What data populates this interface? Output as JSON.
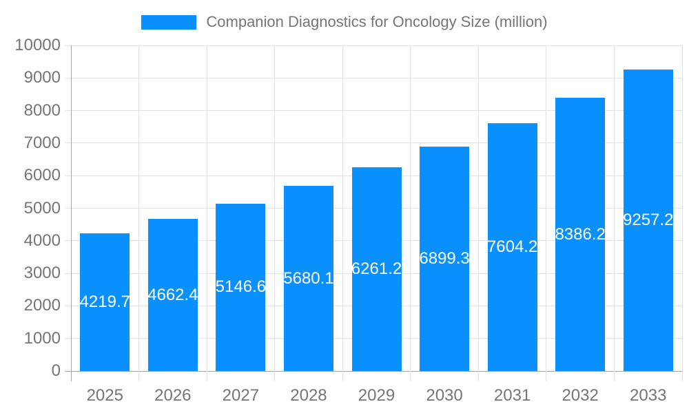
{
  "chart_data": {
    "type": "bar",
    "title": "Companion Diagnostics for Oncology Size (million)",
    "legend_position": "top",
    "categories": [
      "2025",
      "2026",
      "2027",
      "2028",
      "2029",
      "2030",
      "2031",
      "2032",
      "2033"
    ],
    "series": [
      {
        "name": "Companion Diagnostics for Oncology Size (million)",
        "values": [
          4219.7,
          4662.4,
          5146.6,
          5680.1,
          6261.2,
          6899.3,
          7604.2,
          8386.2,
          9257.2
        ]
      }
    ],
    "xlabel": "",
    "ylabel": "",
    "ylim": [
      0,
      10000
    ],
    "ytick_step": 1000,
    "grid": true,
    "value_labels_shown": true,
    "colors": {
      "bar": "#0a90fc",
      "grid": "#e3e3e3",
      "axis": "#a6a6a6",
      "tick_label": "#757575",
      "title": "#757575",
      "value_label": "#ffffff",
      "background": "#ffffff"
    }
  }
}
